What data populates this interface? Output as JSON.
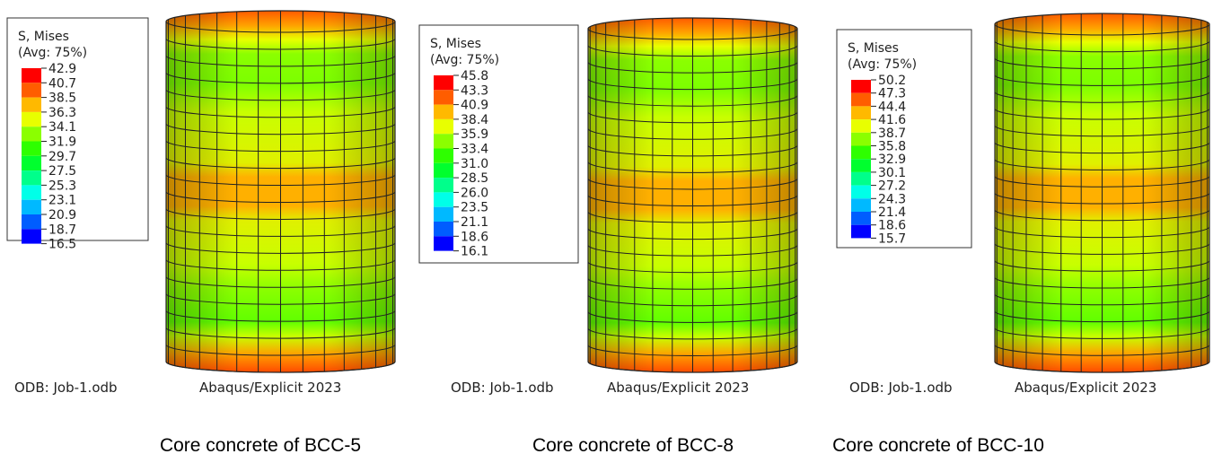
{
  "panels": [
    {
      "legend_title": "S, Mises",
      "legend_avg": "(Avg: 75%)",
      "legend_values": [
        "42.9",
        "40.7",
        "38.5",
        "36.3",
        "34.1",
        "31.9",
        "29.7",
        "27.5",
        "25.3",
        "23.1",
        "20.9",
        "18.7",
        "16.5"
      ],
      "odb": "ODB: Job-1.odb",
      "software": "Abaqus/Explicit 2023",
      "caption": "Core concrete of BCC-5"
    },
    {
      "legend_title": "S, Mises",
      "legend_avg": "(Avg: 75%)",
      "legend_values": [
        "45.8",
        "43.3",
        "40.9",
        "38.4",
        "35.9",
        "33.4",
        "31.0",
        "28.5",
        "26.0",
        "23.5",
        "21.1",
        "18.6",
        "16.1"
      ],
      "odb": "ODB: Job-1.odb",
      "software": "Abaqus/Explicit 2023",
      "caption": "Core concrete of BCC-8"
    },
    {
      "legend_title": "S, Mises",
      "legend_avg": "(Avg: 75%)",
      "legend_values": [
        "50.2",
        "47.3",
        "44.4",
        "41.6",
        "38.7",
        "35.8",
        "32.9",
        "30.1",
        "27.2",
        "24.3",
        "21.4",
        "18.6",
        "15.7"
      ],
      "odb": "ODB: Job-1.odb",
      "software": "Abaqus/Explicit 2023",
      "caption": "Core concrete of BCC-10"
    }
  ]
}
